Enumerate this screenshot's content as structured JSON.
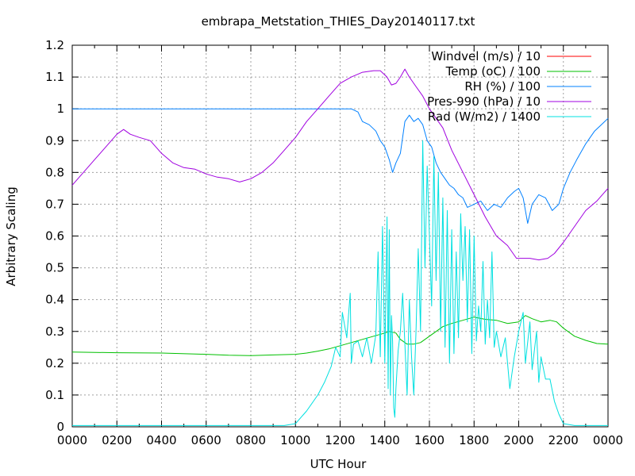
{
  "chart_data": {
    "type": "line",
    "title": "embrapa_Metstation_THIES_Day20140117.txt",
    "xlabel": "UTC Hour",
    "ylabel": "Arbitrary Scaling",
    "xlim": [
      0,
      24
    ],
    "ylim": [
      0,
      1.2
    ],
    "grid": true,
    "legend_position": "top-right",
    "x_ticks": [
      {
        "value": 0,
        "label": "0000"
      },
      {
        "value": 2,
        "label": "0200"
      },
      {
        "value": 4,
        "label": "0400"
      },
      {
        "value": 6,
        "label": "0600"
      },
      {
        "value": 8,
        "label": "0800"
      },
      {
        "value": 10,
        "label": "1000"
      },
      {
        "value": 12,
        "label": "1200"
      },
      {
        "value": 14,
        "label": "1400"
      },
      {
        "value": 16,
        "label": "1600"
      },
      {
        "value": 18,
        "label": "1800"
      },
      {
        "value": 20,
        "label": "2000"
      },
      {
        "value": 22,
        "label": "2200"
      },
      {
        "value": 24,
        "label": "0000"
      }
    ],
    "y_ticks": [
      {
        "value": 0,
        "label": "0"
      },
      {
        "value": 0.1,
        "label": "0.1"
      },
      {
        "value": 0.2,
        "label": "0.2"
      },
      {
        "value": 0.3,
        "label": "0.3"
      },
      {
        "value": 0.4,
        "label": "0.4"
      },
      {
        "value": 0.5,
        "label": "0.5"
      },
      {
        "value": 0.6,
        "label": "0.6"
      },
      {
        "value": 0.7,
        "label": "0.7"
      },
      {
        "value": 0.8,
        "label": "0.8"
      },
      {
        "value": 0.9,
        "label": "0.9"
      },
      {
        "value": 1,
        "label": "1"
      },
      {
        "value": 1.1,
        "label": "1.1"
      },
      {
        "value": 1.2,
        "label": "1.2"
      }
    ],
    "series": [
      {
        "name": "Windvel (m/s) / 10",
        "color": "#ff0000",
        "points": []
      },
      {
        "name": "Temp (oC) / 100",
        "color": "#00c000",
        "points": [
          [
            0,
            0.235
          ],
          [
            2,
            0.233
          ],
          [
            4,
            0.232
          ],
          [
            6,
            0.228
          ],
          [
            7,
            0.225
          ],
          [
            8,
            0.224
          ],
          [
            9,
            0.226
          ],
          [
            10,
            0.228
          ],
          [
            10.5,
            0.232
          ],
          [
            11,
            0.238
          ],
          [
            11.5,
            0.245
          ],
          [
            12,
            0.255
          ],
          [
            12.5,
            0.265
          ],
          [
            13,
            0.275
          ],
          [
            13.5,
            0.285
          ],
          [
            14,
            0.295
          ],
          [
            14.2,
            0.3
          ],
          [
            14.5,
            0.295
          ],
          [
            14.7,
            0.275
          ],
          [
            15,
            0.26
          ],
          [
            15.3,
            0.26
          ],
          [
            15.6,
            0.265
          ],
          [
            16,
            0.285
          ],
          [
            16.3,
            0.3
          ],
          [
            16.6,
            0.315
          ],
          [
            17,
            0.325
          ],
          [
            17.5,
            0.335
          ],
          [
            18,
            0.345
          ],
          [
            18.5,
            0.338
          ],
          [
            19,
            0.335
          ],
          [
            19.5,
            0.325
          ],
          [
            20,
            0.33
          ],
          [
            20.3,
            0.35
          ],
          [
            20.6,
            0.34
          ],
          [
            21,
            0.33
          ],
          [
            21.4,
            0.335
          ],
          [
            21.7,
            0.33
          ],
          [
            22,
            0.31
          ],
          [
            22.5,
            0.285
          ],
          [
            23,
            0.272
          ],
          [
            23.5,
            0.262
          ],
          [
            24,
            0.26
          ]
        ]
      },
      {
        "name": "RH (%) / 100",
        "color": "#0080ff",
        "points": [
          [
            0,
            1
          ],
          [
            12.5,
            1
          ],
          [
            12.8,
            0.99
          ],
          [
            13,
            0.96
          ],
          [
            13.3,
            0.95
          ],
          [
            13.6,
            0.93
          ],
          [
            13.8,
            0.9
          ],
          [
            14,
            0.88
          ],
          [
            14.2,
            0.84
          ],
          [
            14.35,
            0.8
          ],
          [
            14.5,
            0.83
          ],
          [
            14.7,
            0.86
          ],
          [
            14.9,
            0.96
          ],
          [
            15.1,
            0.98
          ],
          [
            15.3,
            0.96
          ],
          [
            15.5,
            0.97
          ],
          [
            15.7,
            0.95
          ],
          [
            15.9,
            0.9
          ],
          [
            16.1,
            0.88
          ],
          [
            16.3,
            0.83
          ],
          [
            16.5,
            0.8
          ],
          [
            16.7,
            0.78
          ],
          [
            16.9,
            0.76
          ],
          [
            17.1,
            0.75
          ],
          [
            17.3,
            0.73
          ],
          [
            17.5,
            0.72
          ],
          [
            17.7,
            0.69
          ],
          [
            18,
            0.7
          ],
          [
            18.3,
            0.71
          ],
          [
            18.6,
            0.68
          ],
          [
            18.9,
            0.7
          ],
          [
            19.2,
            0.69
          ],
          [
            19.5,
            0.72
          ],
          [
            19.8,
            0.74
          ],
          [
            20,
            0.75
          ],
          [
            20.2,
            0.72
          ],
          [
            20.4,
            0.64
          ],
          [
            20.6,
            0.7
          ],
          [
            20.9,
            0.73
          ],
          [
            21.2,
            0.72
          ],
          [
            21.5,
            0.68
          ],
          [
            21.8,
            0.7
          ],
          [
            22,
            0.75
          ],
          [
            22.3,
            0.8
          ],
          [
            22.6,
            0.84
          ],
          [
            23,
            0.89
          ],
          [
            23.4,
            0.93
          ],
          [
            23.7,
            0.95
          ],
          [
            24,
            0.97
          ]
        ]
      },
      {
        "name": "Pres-990 (hPa) / 10",
        "color": "#a000e0",
        "points": [
          [
            0,
            0.76
          ],
          [
            0.5,
            0.8
          ],
          [
            1,
            0.84
          ],
          [
            1.5,
            0.88
          ],
          [
            2,
            0.92
          ],
          [
            2.3,
            0.935
          ],
          [
            2.6,
            0.92
          ],
          [
            3,
            0.91
          ],
          [
            3.5,
            0.9
          ],
          [
            4,
            0.86
          ],
          [
            4.5,
            0.83
          ],
          [
            5,
            0.815
          ],
          [
            5.5,
            0.81
          ],
          [
            6,
            0.795
          ],
          [
            6.5,
            0.785
          ],
          [
            7,
            0.78
          ],
          [
            7.5,
            0.77
          ],
          [
            8,
            0.78
          ],
          [
            8.5,
            0.8
          ],
          [
            9,
            0.83
          ],
          [
            9.5,
            0.87
          ],
          [
            10,
            0.91
          ],
          [
            10.5,
            0.96
          ],
          [
            11,
            1
          ],
          [
            11.5,
            1.04
          ],
          [
            12,
            1.08
          ],
          [
            12.5,
            1.1
          ],
          [
            13,
            1.115
          ],
          [
            13.5,
            1.12
          ],
          [
            13.8,
            1.12
          ],
          [
            14.1,
            1.1
          ],
          [
            14.3,
            1.075
          ],
          [
            14.5,
            1.08
          ],
          [
            14.7,
            1.1
          ],
          [
            14.9,
            1.125
          ],
          [
            15.1,
            1.1
          ],
          [
            15.4,
            1.07
          ],
          [
            15.7,
            1.04
          ],
          [
            16,
            1
          ],
          [
            16.3,
            0.97
          ],
          [
            16.6,
            0.94
          ],
          [
            17,
            0.87
          ],
          [
            17.5,
            0.8
          ],
          [
            18,
            0.73
          ],
          [
            18.5,
            0.66
          ],
          [
            19,
            0.6
          ],
          [
            19.5,
            0.57
          ],
          [
            19.9,
            0.53
          ],
          [
            20.5,
            0.53
          ],
          [
            20.9,
            0.525
          ],
          [
            21.3,
            0.53
          ],
          [
            21.6,
            0.545
          ],
          [
            22,
            0.58
          ],
          [
            22.5,
            0.63
          ],
          [
            23,
            0.68
          ],
          [
            23.5,
            0.71
          ],
          [
            24,
            0.75
          ]
        ]
      },
      {
        "name": "Rad (W/m2) / 1400",
        "color": "#00e0e0",
        "points": [
          [
            0,
            0.004
          ],
          [
            9.5,
            0.004
          ],
          [
            10,
            0.01
          ],
          [
            10.5,
            0.05
          ],
          [
            10.8,
            0.08
          ],
          [
            11,
            0.1
          ],
          [
            11.3,
            0.14
          ],
          [
            11.6,
            0.19
          ],
          [
            11.8,
            0.25
          ],
          [
            12,
            0.22
          ],
          [
            12.1,
            0.36
          ],
          [
            12.3,
            0.28
          ],
          [
            12.45,
            0.42
          ],
          [
            12.5,
            0.2
          ],
          [
            12.6,
            0.26
          ],
          [
            12.8,
            0.27
          ],
          [
            13,
            0.22
          ],
          [
            13.2,
            0.28
          ],
          [
            13.4,
            0.2
          ],
          [
            13.6,
            0.29
          ],
          [
            13.7,
            0.55
          ],
          [
            13.8,
            0.22
          ],
          [
            13.9,
            0.63
          ],
          [
            14.0,
            0.2
          ],
          [
            14.1,
            0.66
          ],
          [
            14.15,
            0.12
          ],
          [
            14.2,
            0.62
          ],
          [
            14.25,
            0.1
          ],
          [
            14.3,
            0.35
          ],
          [
            14.35,
            0.27
          ],
          [
            14.4,
            0.06
          ],
          [
            14.45,
            0.03
          ],
          [
            14.5,
            0.12
          ],
          [
            14.6,
            0.24
          ],
          [
            14.7,
            0.3
          ],
          [
            14.8,
            0.42
          ],
          [
            14.9,
            0.26
          ],
          [
            15.0,
            0.1
          ],
          [
            15.1,
            0.4
          ],
          [
            15.2,
            0.22
          ],
          [
            15.3,
            0.1
          ],
          [
            15.4,
            0.3
          ],
          [
            15.5,
            0.56
          ],
          [
            15.6,
            0.3
          ],
          [
            15.7,
            0.9
          ],
          [
            15.8,
            0.5
          ],
          [
            15.9,
            0.82
          ],
          [
            16.0,
            0.6
          ],
          [
            16.1,
            0.38
          ],
          [
            16.2,
            0.85
          ],
          [
            16.3,
            0.46
          ],
          [
            16.4,
            0.8
          ],
          [
            16.5,
            0.3
          ],
          [
            16.6,
            0.72
          ],
          [
            16.7,
            0.25
          ],
          [
            16.8,
            0.68
          ],
          [
            16.9,
            0.2
          ],
          [
            17.0,
            0.62
          ],
          [
            17.1,
            0.23
          ],
          [
            17.2,
            0.55
          ],
          [
            17.3,
            0.28
          ],
          [
            17.4,
            0.67
          ],
          [
            17.5,
            0.46
          ],
          [
            17.6,
            0.63
          ],
          [
            17.7,
            0.33
          ],
          [
            17.8,
            0.62
          ],
          [
            17.9,
            0.23
          ],
          [
            18.0,
            0.6
          ],
          [
            18.1,
            0.27
          ],
          [
            18.2,
            0.38
          ],
          [
            18.3,
            0.3
          ],
          [
            18.4,
            0.52
          ],
          [
            18.5,
            0.26
          ],
          [
            18.6,
            0.4
          ],
          [
            18.7,
            0.28
          ],
          [
            18.8,
            0.55
          ],
          [
            18.9,
            0.25
          ],
          [
            19.0,
            0.3
          ],
          [
            19.2,
            0.22
          ],
          [
            19.4,
            0.28
          ],
          [
            19.6,
            0.12
          ],
          [
            19.8,
            0.22
          ],
          [
            20.0,
            0.3
          ],
          [
            20.2,
            0.36
          ],
          [
            20.3,
            0.2
          ],
          [
            20.5,
            0.33
          ],
          [
            20.6,
            0.18
          ],
          [
            20.8,
            0.3
          ],
          [
            20.9,
            0.14
          ],
          [
            21.0,
            0.22
          ],
          [
            21.2,
            0.15
          ],
          [
            21.4,
            0.15
          ],
          [
            21.6,
            0.08
          ],
          [
            21.8,
            0.04
          ],
          [
            22,
            0.01
          ],
          [
            22.5,
            0.004
          ],
          [
            24,
            0.004
          ]
        ]
      }
    ]
  }
}
